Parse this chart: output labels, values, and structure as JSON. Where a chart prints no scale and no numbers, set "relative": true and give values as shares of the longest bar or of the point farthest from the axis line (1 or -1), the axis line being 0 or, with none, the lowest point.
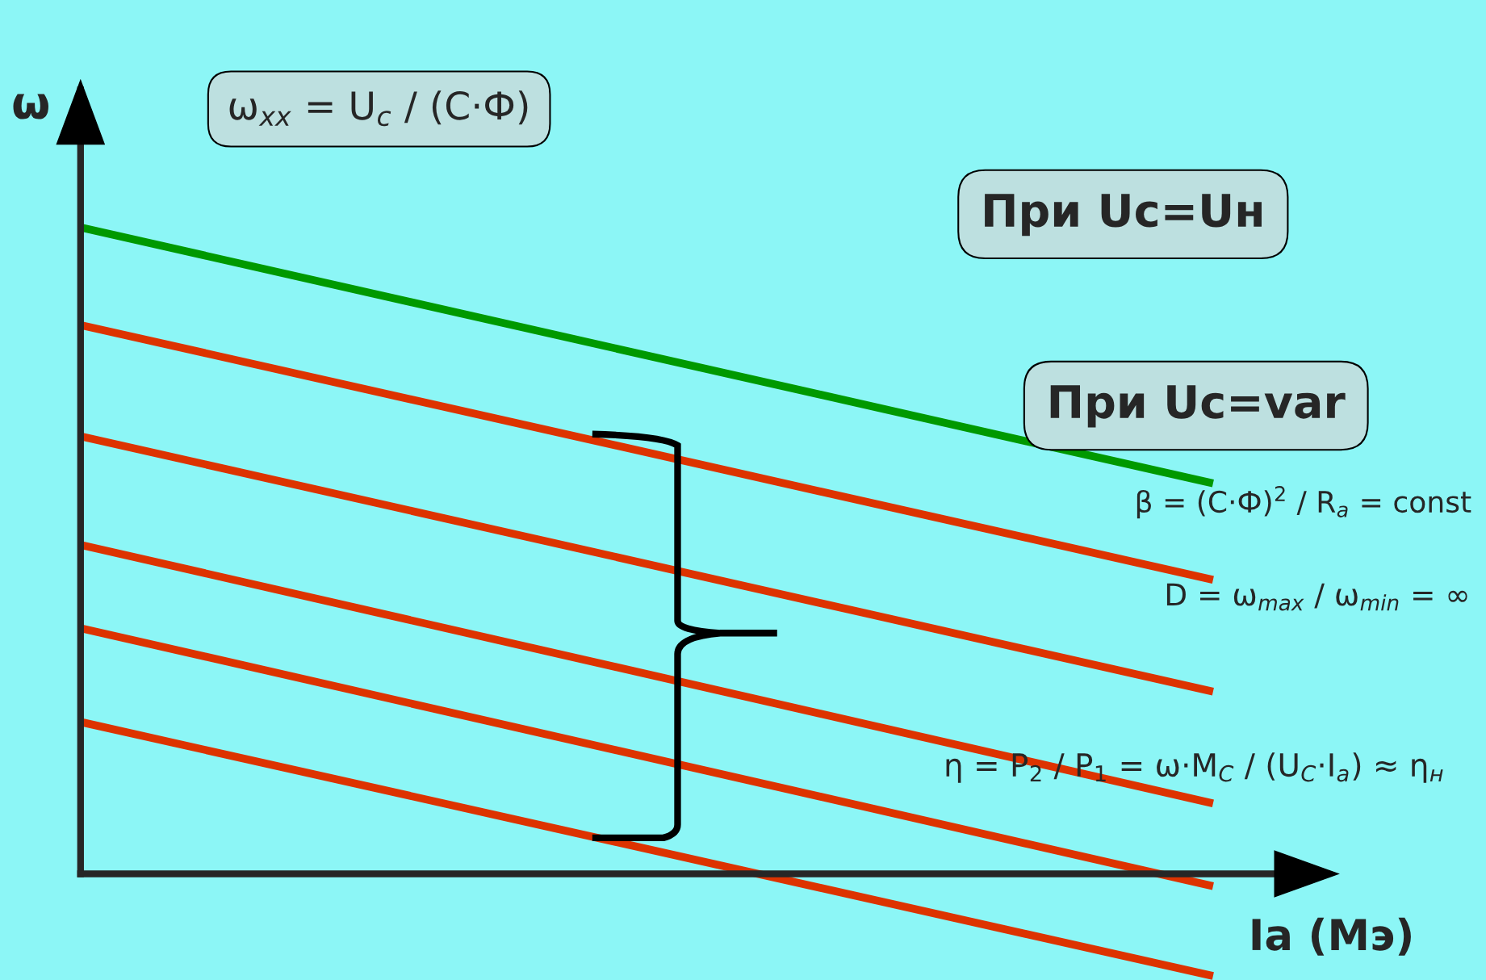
{
  "chart_data": {
    "type": "line",
    "relative": true,
    "ylabel": "ω",
    "xlabel": "Iа (Mэ)",
    "categories": [
      null,
      null
    ],
    "series": [
      {
        "color": "#009900",
        "values": [
          1,
          0.604
        ]
      },
      {
        "color": "#dd3300",
        "values": [
          0.849,
          0.455
        ]
      },
      {
        "color": "#dd3300",
        "values": [
          0.677,
          0.282
        ]
      },
      {
        "color": "#dd3300",
        "values": [
          0.509,
          0.109
        ]
      },
      {
        "color": "#dd3300",
        "values": [
          0.38,
          -0.019
        ]
      },
      {
        "color": "#dd3300",
        "values": [
          0.235,
          -0.158
        ]
      }
    ],
    "annotations": [
      "ω$_{xx}$ = U$_{c}$ / (C·Ф)",
      "При Uc=Uн",
      "При Uc=var",
      "β = (C·Ф)$^{2}$ / R$_{a}$ = const",
      "D = ω$_{max}$ / ω$_{min}$ = ∞",
      "η = P$_{2}$ / P$_{1}$ = ω·M$_{C}$ / (U$_{C}$·I$_{a}$) ≈ η$_{н}$"
    ],
    "legend": false,
    "marker": "none",
    "line_style": "solid"
  }
}
